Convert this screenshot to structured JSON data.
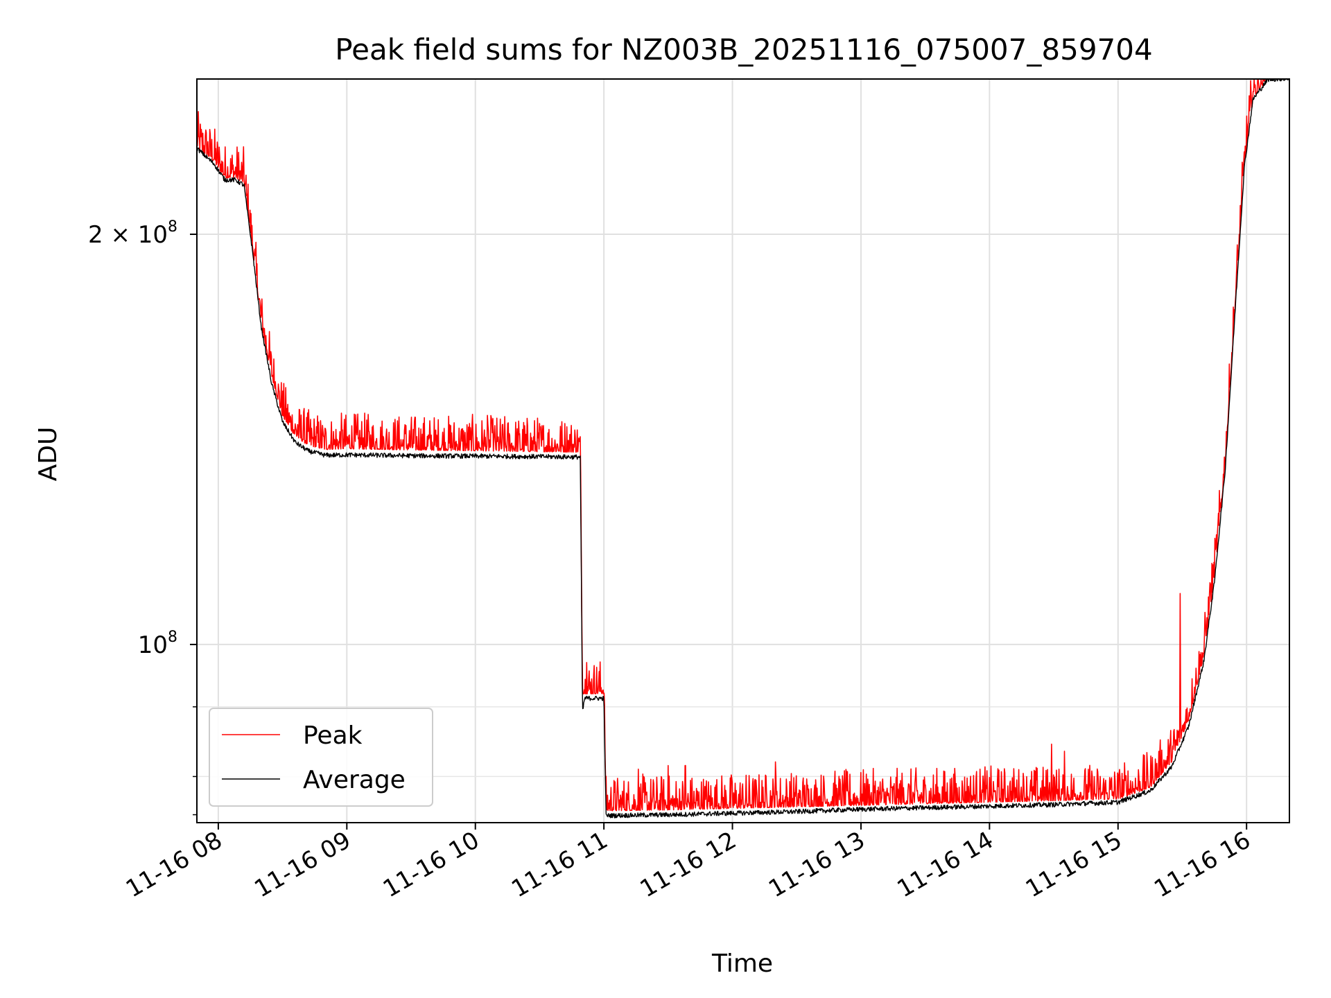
{
  "chart_data": {
    "type": "line",
    "title": "Peak field sums for NZ003B_20251116_075007_859704",
    "xlabel": "Time",
    "ylabel": "ADU",
    "y_scale": "log",
    "ylim": [
      74000000,
      260000000
    ],
    "xlim": [
      "2025-11-16 07:50",
      "2025-11-16 16:20"
    ],
    "grid": true,
    "legend_position": "lower-left",
    "x_tick_labels": [
      "11-16 08",
      "11-16 09",
      "11-16 10",
      "11-16 11",
      "11-16 12",
      "11-16 13",
      "11-16 14",
      "11-16 15",
      "11-16 16"
    ],
    "y_tick_labels": [
      {
        "value": 100000000,
        "label_base": "10",
        "label_exp": "8"
      },
      {
        "value": 200000000,
        "label_base": "2 × 10",
        "label_exp": "8"
      }
    ],
    "series": [
      {
        "name": "Peak",
        "color": "#ff0000",
        "points": [
          [
            "2025-11-16 07:50",
            232000000
          ],
          [
            "2025-11-16 07:58",
            226000000
          ],
          [
            "2025-11-16 08:03",
            220000000
          ],
          [
            "2025-11-16 08:08",
            220000000
          ],
          [
            "2025-11-16 08:12",
            218000000
          ],
          [
            "2025-11-16 08:16",
            195000000
          ],
          [
            "2025-11-16 08:20",
            172000000
          ],
          [
            "2025-11-16 08:25",
            157000000
          ],
          [
            "2025-11-16 08:30",
            147000000
          ],
          [
            "2025-11-16 08:36",
            142000000
          ],
          [
            "2025-11-16 08:42",
            140000000
          ],
          [
            "2025-11-16 08:50",
            139000000
          ],
          [
            "2025-11-16 09:00",
            139200000
          ],
          [
            "2025-11-16 09:30",
            138900000
          ],
          [
            "2025-11-16 10:00",
            138700000
          ],
          [
            "2025-11-16 10:30",
            138500000
          ],
          [
            "2025-11-16 10:49",
            138400000
          ],
          [
            "2025-11-16 10:50",
            92000000
          ],
          [
            "2025-11-16 10:55",
            92000000
          ],
          [
            "2025-11-16 11:00",
            92000000
          ],
          [
            "2025-11-16 11:01",
            75500000
          ],
          [
            "2025-11-16 11:30",
            75600000
          ],
          [
            "2025-11-16 12:00",
            75800000
          ],
          [
            "2025-11-16 12:30",
            76000000
          ],
          [
            "2025-11-16 13:00",
            76200000
          ],
          [
            "2025-11-16 13:30",
            76400000
          ],
          [
            "2025-11-16 14:00",
            76600000
          ],
          [
            "2025-11-16 14:30",
            76800000
          ],
          [
            "2025-11-16 15:00",
            77000000
          ],
          [
            "2025-11-16 15:15",
            78500000
          ],
          [
            "2025-11-16 15:25",
            82000000
          ],
          [
            "2025-11-16 15:33",
            88000000
          ],
          [
            "2025-11-16 15:40",
            98000000
          ],
          [
            "2025-11-16 15:45",
            112000000
          ],
          [
            "2025-11-16 15:50",
            135000000
          ],
          [
            "2025-11-16 15:55",
            180000000
          ],
          [
            "2025-11-16 15:59",
            225000000
          ],
          [
            "2025-11-16 16:03",
            252000000
          ],
          [
            "2025-11-16 16:10",
            260000000
          ],
          [
            "2025-11-16 16:20",
            260000000
          ]
        ],
        "spikes": [
          [
            "2025-11-16 08:24",
            157000000
          ],
          [
            "2025-11-16 08:37",
            145000000
          ],
          [
            "2025-11-16 09:27",
            143500000
          ],
          [
            "2025-11-16 10:08",
            143000000
          ],
          [
            "2025-11-16 10:52",
            97000000
          ],
          [
            "2025-11-16 11:16",
            81000000
          ],
          [
            "2025-11-16 11:30",
            81500000
          ],
          [
            "2025-11-16 11:38",
            81500000
          ],
          [
            "2025-11-16 12:20",
            82000000
          ],
          [
            "2025-11-16 14:29",
            84500000
          ],
          [
            "2025-11-16 14:35",
            83500000
          ],
          [
            "2025-11-16 15:29",
            109000000
          ],
          [
            "2025-11-16 15:43",
            111000000
          ]
        ],
        "noise_amplitude_fraction": 0.04
      },
      {
        "name": "Average",
        "color": "#000000",
        "points": [
          [
            "2025-11-16 07:50",
            231000000
          ],
          [
            "2025-11-16 07:58",
            225000000
          ],
          [
            "2025-11-16 08:03",
            219000000
          ],
          [
            "2025-11-16 08:08",
            219000000
          ],
          [
            "2025-11-16 08:12",
            217000000
          ],
          [
            "2025-11-16 08:16",
            194000000
          ],
          [
            "2025-11-16 08:20",
            171000000
          ],
          [
            "2025-11-16 08:25",
            155000000
          ],
          [
            "2025-11-16 08:30",
            145500000
          ],
          [
            "2025-11-16 08:36",
            140500000
          ],
          [
            "2025-11-16 08:42",
            138500000
          ],
          [
            "2025-11-16 08:50",
            137500000
          ],
          [
            "2025-11-16 09:00",
            137600000
          ],
          [
            "2025-11-16 09:30",
            137400000
          ],
          [
            "2025-11-16 10:00",
            137300000
          ],
          [
            "2025-11-16 10:30",
            137200000
          ],
          [
            "2025-11-16 10:49",
            137100000
          ],
          [
            "2025-11-16 10:50",
            89000000
          ],
          [
            "2025-11-16 10:51",
            91200000
          ],
          [
            "2025-11-16 11:00",
            91200000
          ],
          [
            "2025-11-16 11:01",
            74800000
          ],
          [
            "2025-11-16 11:30",
            74900000
          ],
          [
            "2025-11-16 12:00",
            75100000
          ],
          [
            "2025-11-16 12:30",
            75300000
          ],
          [
            "2025-11-16 13:00",
            75600000
          ],
          [
            "2025-11-16 13:30",
            75800000
          ],
          [
            "2025-11-16 14:00",
            76000000
          ],
          [
            "2025-11-16 14:30",
            76200000
          ],
          [
            "2025-11-16 15:00",
            76500000
          ],
          [
            "2025-11-16 15:15",
            78000000
          ],
          [
            "2025-11-16 15:25",
            81200000
          ],
          [
            "2025-11-16 15:33",
            87000000
          ],
          [
            "2025-11-16 15:40",
            97000000
          ],
          [
            "2025-11-16 15:45",
            111000000
          ],
          [
            "2025-11-16 15:50",
            134000000
          ],
          [
            "2025-11-16 15:55",
            179000000
          ],
          [
            "2025-11-16 15:59",
            224000000
          ],
          [
            "2025-11-16 16:03",
            251000000
          ],
          [
            "2025-11-16 16:10",
            259500000
          ],
          [
            "2025-11-16 16:20",
            260000000
          ]
        ],
        "noise_amplitude_fraction": 0.008
      }
    ]
  }
}
